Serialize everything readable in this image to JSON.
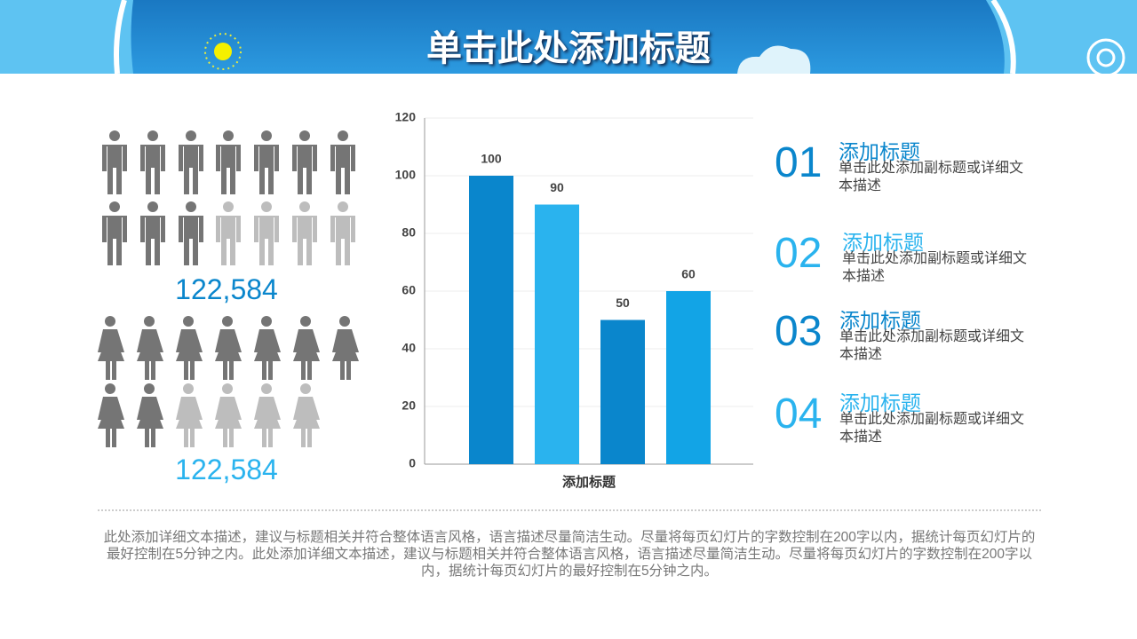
{
  "header": {
    "title": "单击此处添加标题"
  },
  "stats": [
    {
      "value": "122,584"
    },
    {
      "value": "122,584"
    }
  ],
  "chart_data": {
    "type": "bar",
    "categories": [
      null,
      null,
      null,
      null
    ],
    "values": [
      100,
      90,
      50,
      60
    ],
    "colors": [
      "#0a86cc",
      "#2ab3ee",
      "#0a86cc",
      "#12a4e6"
    ],
    "x_label": "添加标题",
    "ylim": [
      0,
      120
    ],
    "yticks": [
      0,
      20,
      40,
      60,
      80,
      100,
      120
    ],
    "grid": true
  },
  "items": [
    {
      "number": "01",
      "title": "添加标题",
      "desc": "单击此处添加副标题或详细文本描述"
    },
    {
      "number": "02",
      "title": "添加标题",
      "desc": "单击此处添加副标题或详细文本描述"
    },
    {
      "number": "03",
      "title": "添加标题",
      "desc": "单击此处添加副标题或详细文本描述"
    },
    {
      "number": "04",
      "title": "添加标题",
      "desc": "单击此处添加副标题或详细文本描述"
    }
  ],
  "footer": {
    "text": "此处添加详细文本描述，建议与标题相关并符合整体语言风格，语言描述尽量简洁生动。尽量将每页幻灯片的字数控制在200字以内，据统计每页幻灯片的最好控制在5分钟之内。此处添加详细文本描述，建议与标题相关并符合整体语言风格，语言描述尽量简洁生动。尽量将每页幻灯片的字数控制在200字以内，据统计每页幻灯片的最好控制在5分钟之内。"
  }
}
